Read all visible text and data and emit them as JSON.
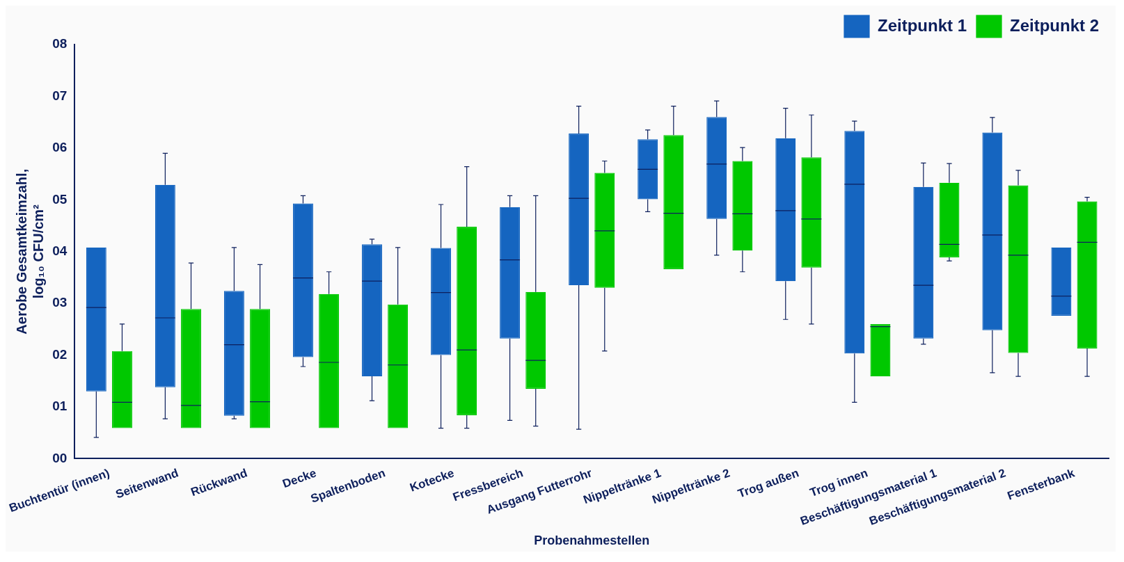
{
  "chart_data": {
    "type": "box",
    "xlabel": "Probenahmestellen",
    "ylabel": "Aerobe Gesamtkeimzahl, log₁₀ CFU/cm²",
    "categories": [
      "Buchtentür (innen)",
      "Seitenwand",
      "Rückwand",
      "Decke",
      "Spaltenboden",
      "Kotecke",
      "Fressbereich",
      "Ausgang Futterrohr",
      "Nippeltränke 1",
      "Nippeltränke 2",
      "Trog außen",
      "Trog innen",
      "Beschäftigungsmaterial 1",
      "Beschäftigungsmaterial 2",
      "Fensterbank"
    ],
    "ylim": [
      0,
      8
    ],
    "yticks": [
      {
        "value": 0,
        "label": "00"
      },
      {
        "value": 1,
        "label": "01"
      },
      {
        "value": 2,
        "label": "02"
      },
      {
        "value": 3,
        "label": "03"
      },
      {
        "value": 4,
        "label": "04"
      },
      {
        "value": 5,
        "label": "05"
      },
      {
        "value": 6,
        "label": "06"
      },
      {
        "value": 7,
        "label": "07"
      },
      {
        "value": 8,
        "label": "08"
      }
    ],
    "grid": false,
    "legend": "top right",
    "series": [
      {
        "name": "Zeitpunkt 1",
        "color": "#1565c0",
        "boxes": [
          {
            "low": 0.41,
            "q1": 1.3,
            "median": 2.92,
            "q3": 4.08,
            "high": 4.08
          },
          {
            "low": 0.77,
            "q1": 1.38,
            "median": 2.72,
            "q3": 5.29,
            "high": 5.9
          },
          {
            "low": 0.77,
            "q1": 0.83,
            "median": 2.2,
            "q3": 3.24,
            "high": 4.08
          },
          {
            "low": 1.78,
            "q1": 1.96,
            "median": 3.49,
            "q3": 4.93,
            "high": 5.08
          },
          {
            "low": 1.12,
            "q1": 1.59,
            "median": 3.43,
            "q3": 4.14,
            "high": 4.24
          },
          {
            "low": 0.59,
            "q1": 2.0,
            "median": 3.21,
            "q3": 4.07,
            "high": 4.91
          },
          {
            "low": 0.74,
            "q1": 2.32,
            "median": 3.84,
            "q3": 4.86,
            "high": 5.08
          },
          {
            "low": 0.57,
            "q1": 3.35,
            "median": 5.03,
            "q3": 6.28,
            "high": 6.81
          },
          {
            "low": 4.77,
            "q1": 5.01,
            "median": 5.59,
            "q3": 6.17,
            "high": 6.35
          },
          {
            "low": 3.93,
            "q1": 4.63,
            "median": 5.69,
            "q3": 6.6,
            "high": 6.91
          },
          {
            "low": 2.69,
            "q1": 3.43,
            "median": 4.79,
            "q3": 6.19,
            "high": 6.77
          },
          {
            "low": 1.09,
            "q1": 2.03,
            "median": 5.3,
            "q3": 6.33,
            "high": 6.52
          },
          {
            "low": 2.21,
            "q1": 2.32,
            "median": 3.35,
            "q3": 5.25,
            "high": 5.71
          },
          {
            "low": 1.66,
            "q1": 2.48,
            "median": 4.32,
            "q3": 6.3,
            "high": 6.59
          },
          {
            "low": 2.76,
            "q1": 2.76,
            "median": 3.14,
            "q3": 4.08,
            "high": 4.08
          }
        ]
      },
      {
        "name": "Zeitpunkt 2",
        "color": "#00c800",
        "boxes": [
          {
            "low": 0.59,
            "q1": 0.59,
            "median": 1.09,
            "q3": 2.08,
            "high": 2.6
          },
          {
            "low": 0.59,
            "q1": 0.59,
            "median": 1.03,
            "q3": 2.89,
            "high": 3.78
          },
          {
            "low": 0.59,
            "q1": 0.59,
            "median": 1.1,
            "q3": 2.89,
            "high": 3.75
          },
          {
            "low": 0.59,
            "q1": 0.59,
            "median": 1.86,
            "q3": 3.18,
            "high": 3.61
          },
          {
            "low": 0.59,
            "q1": 0.59,
            "median": 1.81,
            "q3": 2.98,
            "high": 4.08
          },
          {
            "low": 0.59,
            "q1": 0.84,
            "median": 2.1,
            "q3": 4.48,
            "high": 5.64
          },
          {
            "low": 0.63,
            "q1": 1.35,
            "median": 1.9,
            "q3": 3.22,
            "high": 5.08
          },
          {
            "low": 2.08,
            "q1": 3.3,
            "median": 4.4,
            "q3": 5.52,
            "high": 5.75
          },
          {
            "low": 3.66,
            "q1": 3.66,
            "median": 4.74,
            "q3": 6.25,
            "high": 6.81
          },
          {
            "low": 3.61,
            "q1": 4.02,
            "median": 4.73,
            "q3": 5.75,
            "high": 6.01
          },
          {
            "low": 2.6,
            "q1": 3.69,
            "median": 4.63,
            "q3": 5.82,
            "high": 6.64
          },
          {
            "low": 1.59,
            "q1": 1.59,
            "median": 2.55,
            "q3": 2.6,
            "high": 2.6
          },
          {
            "low": 3.82,
            "q1": 3.89,
            "median": 4.14,
            "q3": 5.33,
            "high": 5.7
          },
          {
            "low": 1.59,
            "q1": 2.04,
            "median": 3.93,
            "q3": 5.28,
            "high": 5.57
          },
          {
            "low": 1.59,
            "q1": 2.13,
            "median": 4.18,
            "q3": 4.97,
            "high": 5.05
          }
        ]
      }
    ]
  }
}
